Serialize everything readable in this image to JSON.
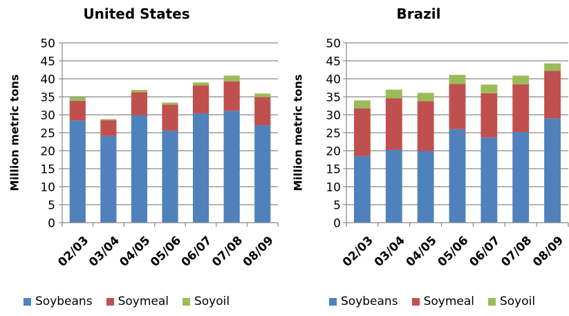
{
  "colors": {
    "soybeans": "#4F81BD",
    "soymeal": "#C0504D",
    "soyoil": "#9BBB59",
    "grid": "#868686",
    "axis": "#868686"
  },
  "legend": {
    "soybeans": "Soybeans",
    "soymeal": "Soymeal",
    "soyoil": "Soyoil"
  },
  "chart_data": [
    {
      "type": "bar",
      "stacked": true,
      "title": "United States",
      "ylabel": "Million metric tons",
      "xlabel": "",
      "ylim": [
        0,
        50
      ],
      "yticks": [
        0,
        5,
        10,
        15,
        20,
        25,
        30,
        35,
        40,
        45,
        50
      ],
      "categories": [
        "02/03",
        "03/04",
        "04/05",
        "05/06",
        "06/07",
        "07/08",
        "08/09"
      ],
      "series": [
        {
          "name": "Soybeans",
          "values": [
            28.4,
            24.1,
            29.9,
            25.6,
            30.4,
            31.1,
            27.1
          ]
        },
        {
          "name": "Soymeal",
          "values": [
            5.5,
            4.4,
            6.4,
            7.2,
            7.8,
            8.2,
            7.8
          ]
        },
        {
          "name": "Soyoil",
          "values": [
            1.0,
            0.3,
            0.6,
            0.6,
            0.8,
            1.6,
            1.0
          ]
        }
      ],
      "grid": true,
      "legend_position": "bottom"
    },
    {
      "type": "bar",
      "stacked": true,
      "title": "Brazil",
      "ylabel": "Million metric tons",
      "xlabel": "",
      "ylim": [
        0,
        50
      ],
      "yticks": [
        0,
        5,
        10,
        15,
        20,
        25,
        30,
        35,
        40,
        45,
        50
      ],
      "categories": [
        "02/03",
        "03/04",
        "04/05",
        "05/06",
        "06/07",
        "07/08",
        "08/09"
      ],
      "series": [
        {
          "name": "Soybeans",
          "values": [
            18.5,
            20.2,
            19.9,
            26.0,
            23.7,
            25.2,
            29.0
          ]
        },
        {
          "name": "Soymeal",
          "values": [
            13.3,
            14.4,
            13.9,
            12.6,
            12.3,
            13.3,
            13.2
          ]
        },
        {
          "name": "Soyoil",
          "values": [
            2.2,
            2.4,
            2.3,
            2.5,
            2.4,
            2.4,
            2.1
          ]
        }
      ],
      "grid": true,
      "legend_position": "bottom"
    }
  ]
}
